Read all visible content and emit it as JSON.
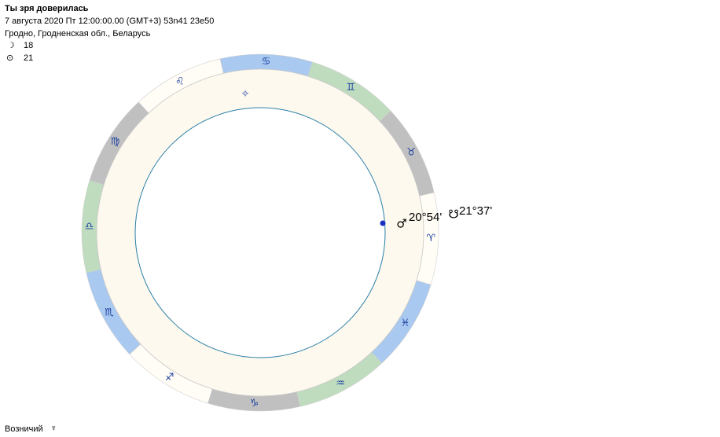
{
  "header": {
    "title": "Ты зря доверилась",
    "date_line": "7 августа 2020  Пт  12:00:00.00 (GMT+3) 53n41  23e50",
    "location": "Гродно, Гродненская обл., Беларусь",
    "moon": {
      "symbol": "☽",
      "value": "18"
    },
    "sun": {
      "symbol": "⊙",
      "value": "21"
    }
  },
  "signs": [
    {
      "glyph": "♈",
      "color": "#fffdf5"
    },
    {
      "glyph": "♉",
      "color": "#c0c0c0"
    },
    {
      "glyph": "♊",
      "color": "#bfdcbf"
    },
    {
      "glyph": "♋",
      "color": "#a9c9f0"
    },
    {
      "glyph": "♌",
      "color": "#fffdf5"
    },
    {
      "glyph": "♍",
      "color": "#c0c0c0"
    },
    {
      "glyph": "♎",
      "color": "#bfdcbf"
    },
    {
      "glyph": "♏",
      "color": "#a9c9f0"
    },
    {
      "glyph": "♐",
      "color": "#fffdf5"
    },
    {
      "glyph": "♑",
      "color": "#c0c0c0"
    },
    {
      "glyph": "♒",
      "color": "#bfdcbf"
    },
    {
      "glyph": "♓",
      "color": "#a9c9f0"
    }
  ],
  "planets": [
    {
      "symbol": "♂",
      "position": "20°54'"
    },
    {
      "symbol": "☋",
      "position": "21°37'"
    }
  ],
  "marker": "✧",
  "footer": {
    "label": "Возничий",
    "symbol": "♆"
  }
}
